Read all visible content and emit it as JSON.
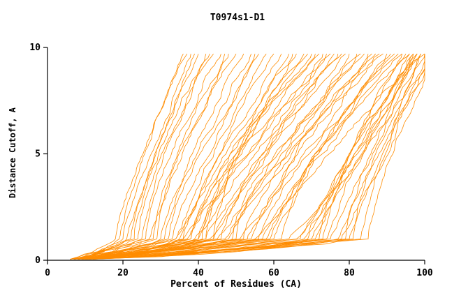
{
  "chart_data": {
    "type": "line",
    "title": "T0974s1-D1",
    "xlabel": "Percent of Residues (CA)",
    "ylabel": "Distance Cutoff, A",
    "xlim": [
      0,
      100
    ],
    "ylim": [
      0,
      10
    ],
    "xticks": [
      0,
      20,
      40,
      60,
      80,
      100
    ],
    "yticks": [
      0,
      5,
      10
    ],
    "grid": false,
    "legend": "none",
    "line_color": "#ff8c00",
    "axis_color": "#000000",
    "y_top_data": 9.7,
    "series_params_format": [
      "x_start_at_y0",
      "x_at_y1",
      "x_at_ytop",
      "seed"
    ],
    "series": [
      [
        10,
        62,
        100,
        1
      ],
      [
        11,
        68,
        102,
        2
      ],
      [
        9,
        72,
        99,
        3
      ],
      [
        12,
        75,
        100,
        4
      ],
      [
        10,
        80,
        103,
        5
      ],
      [
        11,
        83,
        99,
        6
      ],
      [
        12,
        85,
        104,
        7
      ],
      [
        9,
        70,
        98,
        8
      ],
      [
        10,
        66,
        97,
        9
      ],
      [
        11,
        78,
        102,
        10
      ],
      [
        12,
        81,
        99,
        11
      ],
      [
        10,
        74,
        98,
        12
      ],
      [
        9,
        60,
        96,
        13
      ],
      [
        11,
        64,
        97,
        14
      ],
      [
        12,
        69,
        98,
        15
      ],
      [
        10,
        77,
        101,
        16
      ],
      [
        11,
        71,
        96,
        17
      ],
      [
        12,
        79,
        97,
        18
      ],
      [
        10,
        73,
        95,
        19
      ],
      [
        9,
        67,
        94,
        20
      ],
      [
        8,
        55,
        92,
        21
      ],
      [
        9,
        58,
        90,
        22
      ],
      [
        10,
        52,
        88,
        23
      ],
      [
        8,
        48,
        86,
        24
      ],
      [
        9,
        50,
        84,
        25
      ],
      [
        10,
        57,
        93,
        26
      ],
      [
        7,
        45,
        82,
        27
      ],
      [
        8,
        53,
        89,
        28
      ],
      [
        9,
        47,
        80,
        29
      ],
      [
        10,
        44,
        78,
        30
      ],
      [
        8,
        51,
        85,
        31
      ],
      [
        7,
        42,
        76,
        32
      ],
      [
        9,
        56,
        91,
        33
      ],
      [
        10,
        49,
        83,
        34
      ],
      [
        8,
        46,
        79,
        35
      ],
      [
        7,
        40,
        74,
        36
      ],
      [
        9,
        43,
        77,
        37
      ],
      [
        8,
        54,
        87,
        38
      ],
      [
        10,
        59,
        94,
        39
      ],
      [
        9,
        41,
        72,
        40
      ],
      [
        7,
        38,
        70,
        41
      ],
      [
        8,
        39,
        73,
        42
      ],
      [
        9,
        36,
        71,
        43
      ],
      [
        10,
        37,
        75,
        44
      ],
      [
        6,
        20,
        38,
        45
      ],
      [
        7,
        22,
        40,
        46
      ],
      [
        6,
        18,
        36,
        47
      ],
      [
        7,
        25,
        44,
        48
      ],
      [
        8,
        28,
        48,
        49
      ],
      [
        6,
        24,
        42,
        50
      ],
      [
        7,
        30,
        52,
        51
      ],
      [
        8,
        32,
        55,
        52
      ],
      [
        6,
        26,
        46,
        53
      ],
      [
        7,
        34,
        58,
        54
      ],
      [
        8,
        29,
        50,
        55
      ],
      [
        6,
        21,
        39,
        56
      ],
      [
        7,
        27,
        47,
        57
      ],
      [
        8,
        33,
        56,
        58
      ],
      [
        6,
        23,
        43,
        59
      ],
      [
        7,
        31,
        54,
        60
      ],
      [
        8,
        35,
        60,
        61
      ],
      [
        6,
        19,
        37,
        62
      ],
      [
        9,
        34,
        62,
        63
      ],
      [
        10,
        36,
        65,
        64
      ],
      [
        9,
        38,
        68,
        65
      ],
      [
        10,
        40,
        66,
        66
      ],
      [
        11,
        42,
        69,
        67
      ],
      [
        12,
        44,
        64,
        68
      ]
    ]
  }
}
